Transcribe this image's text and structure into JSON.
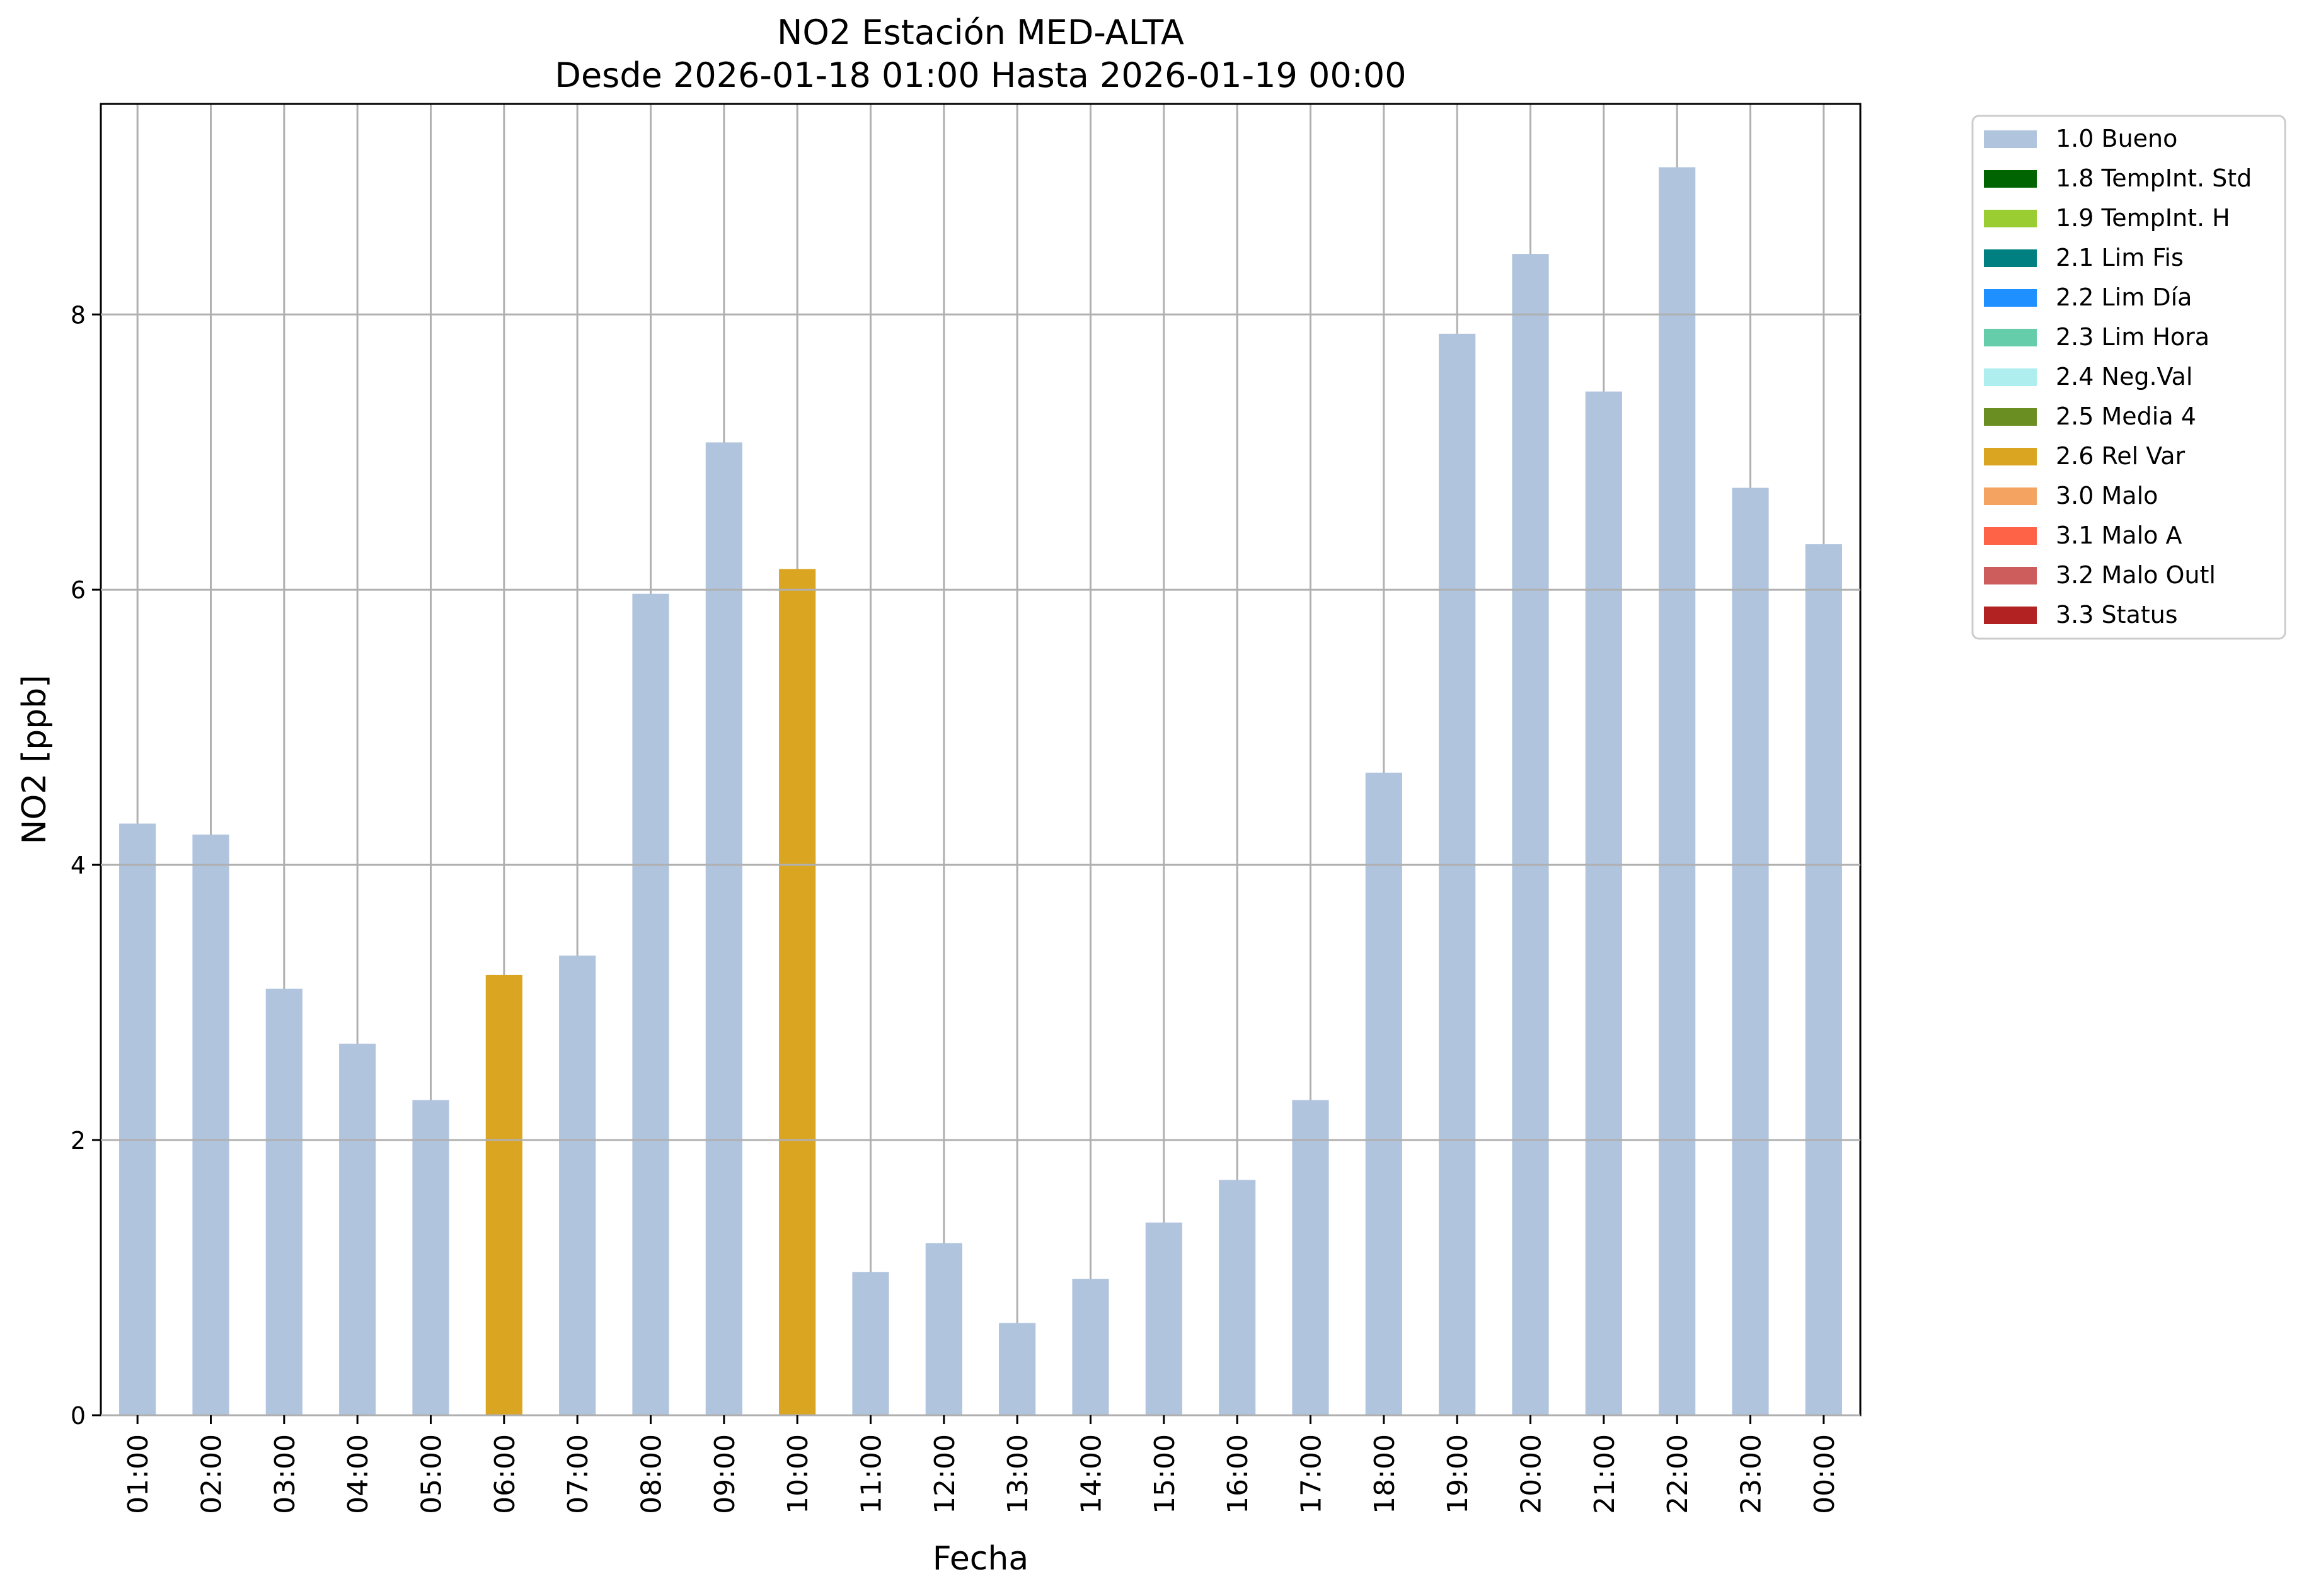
{
  "chart_data": {
    "type": "bar",
    "title": "NO2 Estación MED-ALTA",
    "subtitle": "Desde 2026-01-18 01:00 Hasta 2026-01-19 00:00",
    "xlabel": "Fecha",
    "ylabel": "NO2 [ppb]",
    "ylim": [
      0,
      9.53
    ],
    "yticks": [
      0,
      2,
      4,
      6,
      8
    ],
    "grid": true,
    "legend_position": "outside-top-right",
    "categories": [
      "01:00",
      "02:00",
      "03:00",
      "04:00",
      "05:00",
      "06:00",
      "07:00",
      "08:00",
      "09:00",
      "10:00",
      "11:00",
      "12:00",
      "13:00",
      "14:00",
      "15:00",
      "16:00",
      "17:00",
      "18:00",
      "19:00",
      "20:00",
      "21:00",
      "22:00",
      "23:00",
      "00:00"
    ],
    "values": [
      4.3,
      4.22,
      3.1,
      2.7,
      2.29,
      3.2,
      3.34,
      5.97,
      7.07,
      6.15,
      1.04,
      1.25,
      0.67,
      0.99,
      1.4,
      1.71,
      2.29,
      4.67,
      7.86,
      8.44,
      7.44,
      9.07,
      6.74,
      6.33
    ],
    "flags": [
      "1.0 Bueno",
      "1.0 Bueno",
      "1.0 Bueno",
      "1.0 Bueno",
      "1.0 Bueno",
      "2.6 Rel Var",
      "1.0 Bueno",
      "1.0 Bueno",
      "1.0 Bueno",
      "2.6 Rel Var",
      "1.0 Bueno",
      "1.0 Bueno",
      "1.0 Bueno",
      "1.0 Bueno",
      "1.0 Bueno",
      "1.0 Bueno",
      "1.0 Bueno",
      "1.0 Bueno",
      "1.0 Bueno",
      "1.0 Bueno",
      "1.0 Bueno",
      "1.0 Bueno",
      "1.0 Bueno",
      "1.0 Bueno"
    ],
    "legend": [
      {
        "label": "1.0 Bueno",
        "color": "#b0c4de"
      },
      {
        "label": "1.8 TempInt. Std",
        "color": "#006400"
      },
      {
        "label": "1.9 TempInt. H",
        "color": "#9acd32"
      },
      {
        "label": "2.1 Lim Fis",
        "color": "#008080"
      },
      {
        "label": "2.2 Lim Día",
        "color": "#1e90ff"
      },
      {
        "label": "2.3 Lim Hora",
        "color": "#66cdaa"
      },
      {
        "label": "2.4 Neg.Val",
        "color": "#afeeee"
      },
      {
        "label": "2.5 Media 4",
        "color": "#6b8e23"
      },
      {
        "label": "2.6 Rel Var",
        "color": "#daa520"
      },
      {
        "label": "3.0 Malo",
        "color": "#f4a460"
      },
      {
        "label": "3.1 Malo A",
        "color": "#ff6347"
      },
      {
        "label": "3.2 Malo Outl",
        "color": "#cd5c5c"
      },
      {
        "label": "3.3 Status",
        "color": "#b22222"
      }
    ]
  }
}
